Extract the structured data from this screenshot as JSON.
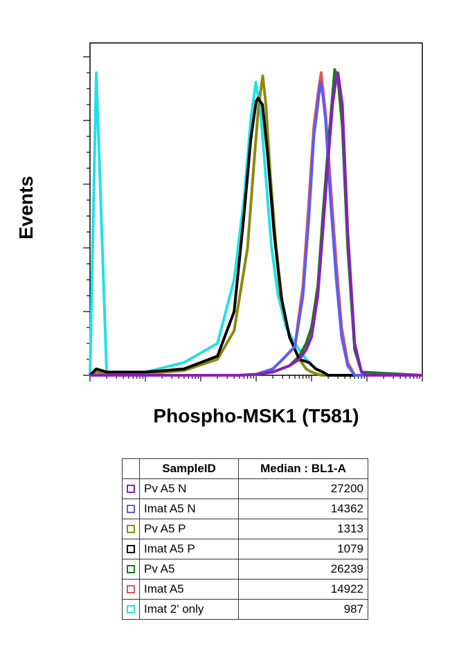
{
  "chart_data": {
    "type": "line",
    "ylabel": "Events",
    "xlabel": "Phospho-MSK1 (T581)",
    "x_scale": "log",
    "xlim": [
      1,
      1000000
    ],
    "ylim": [
      0,
      100
    ],
    "grid": false,
    "series": [
      {
        "name": "Pv A5 N",
        "color": "#8a1fb8",
        "x": [
          1,
          500,
          1000,
          2000,
          4000,
          6000,
          8000,
          10000,
          13000,
          16000,
          20000,
          24000,
          27200,
          30000,
          36000,
          45000,
          60000,
          80000,
          100000,
          1000000
        ],
        "y": [
          0,
          0,
          0.3,
          1,
          3,
          5,
          8,
          12,
          25,
          45,
          68,
          85,
          92,
          95,
          85,
          45,
          10,
          1,
          0,
          0
        ]
      },
      {
        "name": "Imat A5 N",
        "color": "#5a5ef0",
        "x": [
          1,
          500,
          1000,
          2000,
          3000,
          5000,
          7000,
          9000,
          11000,
          13000,
          14362,
          16000,
          18000,
          22000,
          28000,
          35000,
          45000,
          60000,
          1000000
        ],
        "y": [
          0,
          0,
          0.3,
          2,
          5,
          9,
          25,
          50,
          75,
          85,
          92,
          88,
          80,
          55,
          30,
          12,
          3,
          0,
          0
        ]
      },
      {
        "name": "Pv A5 P",
        "color": "#8a8a10",
        "x": [
          1,
          1.3,
          2,
          10,
          50,
          200,
          400,
          700,
          900,
          1100,
          1313,
          1500,
          1800,
          2300,
          3000,
          4000,
          6000,
          8000,
          10000,
          15000,
          20000,
          1000000
        ],
        "y": [
          0,
          1,
          0.5,
          0.5,
          1.5,
          5,
          14,
          40,
          65,
          84,
          94,
          85,
          63,
          40,
          22,
          12,
          5,
          2,
          1,
          0,
          0,
          0
        ]
      },
      {
        "name": "Imat A5 P",
        "color": "#000000",
        "x": [
          1,
          1.3,
          2,
          10,
          50,
          200,
          400,
          600,
          800,
          1000,
          1079,
          1300,
          1600,
          2100,
          2800,
          4000,
          6000,
          9000,
          12000,
          16000,
          20000,
          1000000
        ],
        "y": [
          0,
          2,
          1,
          1,
          2,
          6,
          20,
          50,
          74,
          86,
          87,
          85,
          70,
          45,
          25,
          12,
          5,
          4,
          2,
          1,
          0,
          0
        ]
      },
      {
        "name": "Pv A5",
        "color": "#1a7a1a",
        "x": [
          1,
          500,
          1000,
          2000,
          4000,
          6000,
          8000,
          10000,
          13000,
          16000,
          20000,
          24000,
          26239,
          30000,
          36000,
          45000,
          60000,
          80000,
          1000000
        ],
        "y": [
          0,
          0,
          0.3,
          1,
          3,
          6,
          10,
          15,
          28,
          50,
          72,
          88,
          96,
          93,
          78,
          40,
          8,
          1,
          0
        ]
      },
      {
        "name": "Imat A5",
        "color": "#e05555",
        "x": [
          1,
          500,
          1000,
          2000,
          3000,
          5000,
          7000,
          9000,
          11000,
          13000,
          14922,
          16000,
          18000,
          22000,
          28000,
          35000,
          45000,
          60000,
          1000000
        ],
        "y": [
          0,
          0,
          0.3,
          2,
          5,
          9,
          28,
          55,
          78,
          88,
          95,
          90,
          82,
          60,
          35,
          15,
          4,
          0,
          0
        ]
      },
      {
        "name": "Imat 2' only",
        "color": "#22e0e8",
        "x": [
          1,
          1.3,
          2,
          10,
          50,
          200,
          400,
          600,
          800,
          987,
          1200,
          1500,
          1900,
          2500,
          3500,
          5000,
          8000,
          12000,
          16000,
          20000,
          1000000
        ],
        "y": [
          0,
          95,
          0.5,
          1,
          4,
          10,
          30,
          55,
          80,
          92,
          83,
          62,
          40,
          25,
          15,
          10,
          5,
          2,
          1,
          0,
          0
        ]
      }
    ],
    "table": {
      "headers": [
        "SampleID",
        "Median : BL1-A"
      ],
      "rows": [
        {
          "sample": "Pv A5 N",
          "median": "27200",
          "color": "#8a1fb8"
        },
        {
          "sample": "Imat A5 N",
          "median": "14362",
          "color": "#5a5ef0"
        },
        {
          "sample": "Pv A5 P",
          "median": "1313",
          "color": "#8a8a10"
        },
        {
          "sample": "Imat A5 P",
          "median": "1079",
          "color": "#000000"
        },
        {
          "sample": "Pv A5",
          "median": "26239",
          "color": "#1a7a1a"
        },
        {
          "sample": "Imat A5",
          "median": "14922",
          "color": "#e05555"
        },
        {
          "sample": "Imat 2' only",
          "median": "987",
          "color": "#22e0e8"
        }
      ]
    }
  }
}
